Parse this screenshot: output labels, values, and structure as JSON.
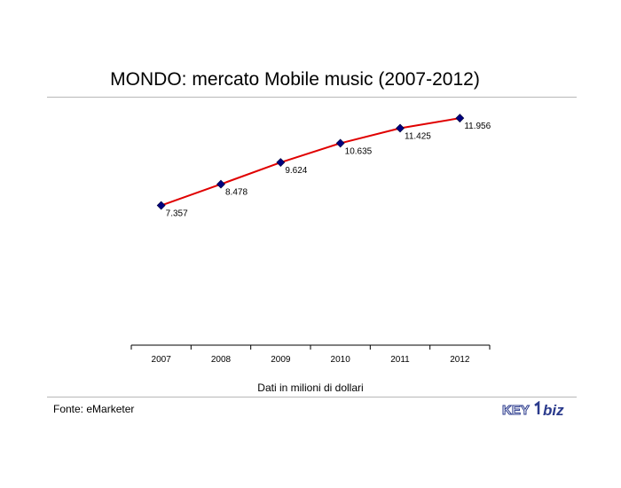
{
  "title": "MONDO: mercato Mobile music (2007-2012)",
  "note": "Dati in milioni di dollari",
  "source": "Fonte: eMarketer",
  "logo": {
    "text_a": "KEY",
    "text_b": "biz"
  },
  "colors": {
    "line": "#e00000",
    "marker": "#000080",
    "rule": "#b8b8b8",
    "logo": "#2a3a8c"
  },
  "chart_data": {
    "type": "line",
    "categories": [
      "2007",
      "2008",
      "2009",
      "2010",
      "2011",
      "2012"
    ],
    "values": [
      7.357,
      8.478,
      9.624,
      10.635,
      11.425,
      11.956
    ],
    "labels": [
      "7.357",
      "8.478",
      "9.624",
      "10.635",
      "11.425",
      "11.956"
    ],
    "title": "MONDO: mercato Mobile music (2007-2012)",
    "xlabel": "Dati in milioni di dollari",
    "ylabel": "",
    "ylim": [
      0,
      14
    ],
    "grid": false,
    "legend": "none"
  }
}
